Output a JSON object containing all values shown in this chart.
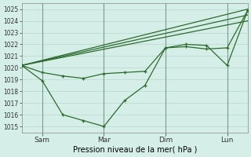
{
  "xlabel": "Pression niveau de la mer( hPa )",
  "ylim": [
    1014.5,
    1025.5
  ],
  "yticks": [
    1015,
    1016,
    1017,
    1018,
    1019,
    1020,
    1021,
    1022,
    1023,
    1024,
    1025
  ],
  "bg_color": "#d5efe8",
  "line_color": "#2d6a2d",
  "grid_color": "#b8d8cc",
  "day_vline_color": "#7a9a8a",
  "xtick_labels": [
    "Sam",
    "Mar",
    "Dim",
    "Lun"
  ],
  "xtick_positions": [
    1,
    4,
    7,
    10
  ],
  "xlim": [
    0,
    11
  ],
  "trend_lines": [
    {
      "x": [
        0,
        11
      ],
      "y": [
        1020.2,
        1025.0
      ]
    },
    {
      "x": [
        0,
        11
      ],
      "y": [
        1020.2,
        1024.5
      ]
    },
    {
      "x": [
        0,
        11
      ],
      "y": [
        1020.2,
        1024.0
      ]
    }
  ],
  "line1_x": [
    0,
    1,
    2,
    3,
    4,
    5,
    6,
    7,
    8,
    9,
    10,
    11
  ],
  "line1_y": [
    1020.2,
    1019.6,
    1019.3,
    1019.1,
    1019.5,
    1019.6,
    1019.7,
    1021.7,
    1021.8,
    1021.6,
    1021.7,
    1024.9
  ],
  "line2_x": [
    0,
    1,
    2,
    3,
    4,
    5,
    6,
    7,
    8,
    9,
    10,
    11
  ],
  "line2_y": [
    1020.2,
    1018.9,
    1016.0,
    1015.5,
    1015.0,
    1017.2,
    1018.5,
    1021.7,
    1022.0,
    1021.9,
    1020.2,
    1024.9
  ],
  "vline_positions": [
    1,
    4,
    7,
    10
  ]
}
